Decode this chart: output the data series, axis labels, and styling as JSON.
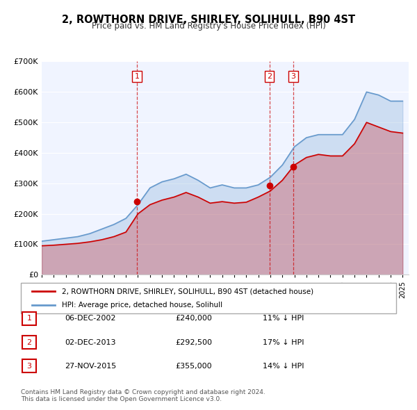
{
  "title": "2, ROWTHORN DRIVE, SHIRLEY, SOLIHULL, B90 4ST",
  "subtitle": "Price paid vs. HM Land Registry's House Price Index (HPI)",
  "legend_label_red": "2, ROWTHORN DRIVE, SHIRLEY, SOLIHULL, B90 4ST (detached house)",
  "legend_label_blue": "HPI: Average price, detached house, Solihull",
  "footer": "Contains HM Land Registry data © Crown copyright and database right 2024.\nThis data is licensed under the Open Government Licence v3.0.",
  "transactions": [
    {
      "num": 1,
      "date": "06-DEC-2002",
      "price": 240000,
      "pct": "11%",
      "year": 2002.92
    },
    {
      "num": 2,
      "date": "02-DEC-2013",
      "price": 292500,
      "pct": "17%",
      "year": 2013.92
    },
    {
      "num": 3,
      "date": "27-NOV-2015",
      "price": 355000,
      "pct": "14%",
      "year": 2015.9
    }
  ],
  "hpi_years": [
    1995,
    1996,
    1997,
    1998,
    1999,
    2000,
    2001,
    2002,
    2003,
    2004,
    2005,
    2006,
    2007,
    2008,
    2009,
    2010,
    2011,
    2012,
    2013,
    2014,
    2015,
    2016,
    2017,
    2018,
    2019,
    2020,
    2021,
    2022,
    2023,
    2024,
    2025
  ],
  "hpi_values": [
    110000,
    115000,
    120000,
    125000,
    135000,
    150000,
    165000,
    185000,
    230000,
    285000,
    305000,
    315000,
    330000,
    310000,
    285000,
    295000,
    285000,
    285000,
    295000,
    320000,
    360000,
    420000,
    450000,
    460000,
    460000,
    460000,
    510000,
    600000,
    590000,
    570000,
    570000
  ],
  "red_years": [
    1995,
    1996,
    1997,
    1998,
    1999,
    2000,
    2001,
    2002,
    2003,
    2004,
    2005,
    2006,
    2007,
    2008,
    2009,
    2010,
    2011,
    2012,
    2013,
    2014,
    2015,
    2016,
    2017,
    2018,
    2019,
    2020,
    2021,
    2022,
    2023,
    2024,
    2025
  ],
  "red_values": [
    95000,
    97000,
    100000,
    103000,
    108000,
    115000,
    125000,
    140000,
    200000,
    230000,
    245000,
    255000,
    270000,
    255000,
    235000,
    240000,
    235000,
    238000,
    255000,
    275000,
    310000,
    360000,
    385000,
    395000,
    390000,
    390000,
    430000,
    500000,
    485000,
    470000,
    465000
  ],
  "ylim": [
    0,
    700000
  ],
  "xlim_start": 1995,
  "xlim_end": 2025.5,
  "background_color": "#f0f4ff",
  "plot_bg": "#f0f4ff",
  "red_color": "#cc0000",
  "blue_color": "#6699cc"
}
